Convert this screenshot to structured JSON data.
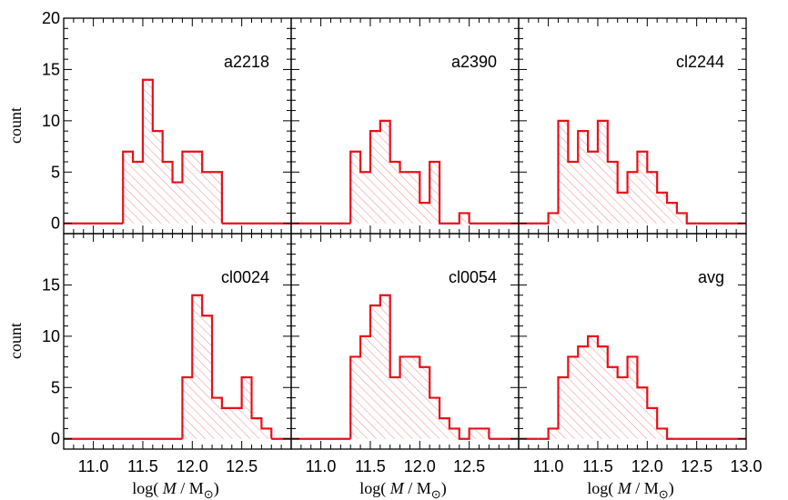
{
  "chart_data": {
    "type": "histogram",
    "layout": "2x3 grid, shared axes",
    "xlabel": "log( M / M⊙)",
    "xlabel_parts": {
      "prefix": "log( ",
      "var": "M",
      "mid": " / M",
      "sub": "⊙",
      "suffix": ")"
    },
    "ylabel": "count",
    "xlim": [
      10.7,
      13.0
    ],
    "ylim": [
      -1,
      20
    ],
    "xticks": [
      11.0,
      11.5,
      12.0,
      12.5
    ],
    "xticks_last_column": [
      11.0,
      11.5,
      12.0,
      12.5,
      13.0
    ],
    "yticks_top_row": [
      0,
      5,
      10,
      15,
      20
    ],
    "yticks_bottom_row": [
      0,
      5,
      10,
      15
    ],
    "bin_width": 0.1,
    "style": {
      "line_color": "#e8101a",
      "fill": "diagonal hatch",
      "frame_color": "#000000"
    },
    "panels": [
      {
        "name": "a2218",
        "bin_start": 11.3,
        "values": [
          7,
          6,
          14,
          9,
          6,
          4,
          7,
          7,
          5,
          5
        ]
      },
      {
        "name": "a2390",
        "bin_start": 11.3,
        "values": [
          7,
          5,
          9,
          10,
          6,
          5,
          5,
          2,
          6,
          0,
          0,
          1
        ]
      },
      {
        "name": "cl2244",
        "bin_start": 10.9,
        "values": [
          0,
          1,
          10,
          6,
          9,
          7,
          10,
          6,
          3,
          5,
          7,
          5,
          3,
          2,
          1,
          0
        ]
      },
      {
        "name": "cl0024",
        "bin_start": 11.9,
        "values": [
          6,
          14,
          12,
          4,
          3,
          3,
          6,
          2,
          1
        ]
      },
      {
        "name": "cl0054",
        "bin_start": 11.3,
        "values": [
          8,
          10,
          13,
          14,
          6,
          8,
          8,
          7,
          4,
          2,
          1,
          0,
          1,
          1
        ]
      },
      {
        "name": "avg",
        "bin_start": 10.9,
        "values": [
          0,
          1,
          6,
          8,
          9,
          10,
          9,
          7,
          6,
          8,
          5,
          3,
          1,
          0
        ]
      }
    ]
  }
}
